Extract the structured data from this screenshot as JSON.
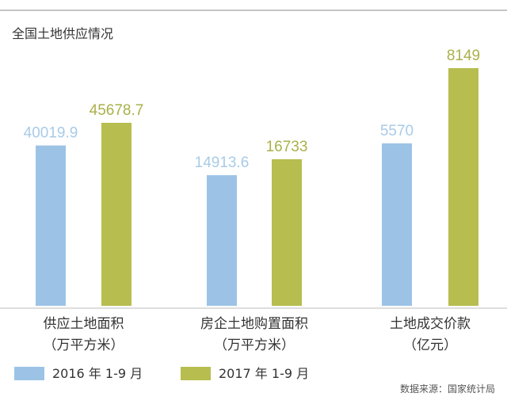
{
  "chart_data": {
    "type": "bar",
    "title": "全国土地供应情况",
    "groups": [
      {
        "label_line1": "供应土地面积",
        "label_line2": "（万平方米）",
        "values": [
          40019.9,
          45678.7
        ],
        "labels": [
          "40019.9",
          "45678.7"
        ]
      },
      {
        "label_line1": "房企土地购置面积",
        "label_line2": "（万平方米）",
        "values": [
          14913.6,
          16733
        ],
        "labels": [
          "14913.6",
          "16733"
        ]
      },
      {
        "label_line1": "土地成交价款",
        "label_line2": "（亿元）",
        "values": [
          5570,
          8149
        ],
        "labels": [
          "5570",
          "8149"
        ]
      }
    ],
    "series": [
      {
        "name": "2016 年 1-9 月",
        "color": "#9cc3e6",
        "label_color": "#a8cbe8"
      },
      {
        "name": "2017 年 1-9 月",
        "color": "#b7bd4e",
        "label_color": "#aab04a"
      }
    ],
    "note": "各组按独立刻度绘制",
    "source": "数据来源：国家统计局",
    "legend_position": "bottom-left",
    "grid": false
  },
  "colors": {
    "text": "#333333",
    "rule": "#888888",
    "axis": "#bdbdbd"
  }
}
